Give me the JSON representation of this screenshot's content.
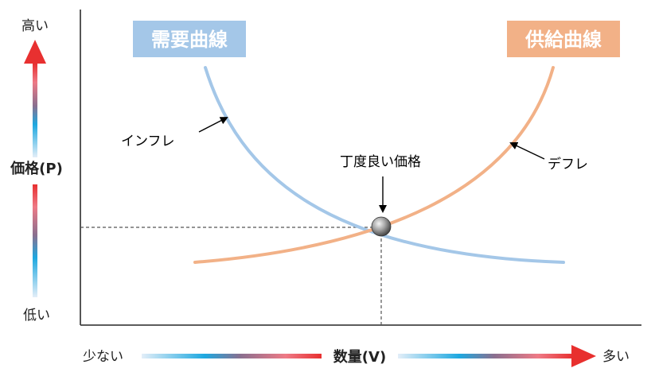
{
  "y_axis": {
    "high_label": "高い",
    "title": "価格(P)",
    "low_label": "低い"
  },
  "x_axis": {
    "low_label": "少ない",
    "title": "数量(V)",
    "high_label": "多い"
  },
  "curves": {
    "demand": {
      "label": "需要曲線",
      "color": "#a4c7e8",
      "label_bg": "#a4c7e8"
    },
    "supply": {
      "label": "供給曲線",
      "color": "#f2b187",
      "label_bg": "#f2b187"
    }
  },
  "annotations": {
    "inflation": "インフレ",
    "deflation": "デフレ",
    "equilibrium": "丁度良い価格"
  },
  "colors": {
    "up_arrow_top": "#e83030",
    "axis_arrow_blue": "#1da8e0",
    "axis_arrow_red": "#e8302e"
  }
}
